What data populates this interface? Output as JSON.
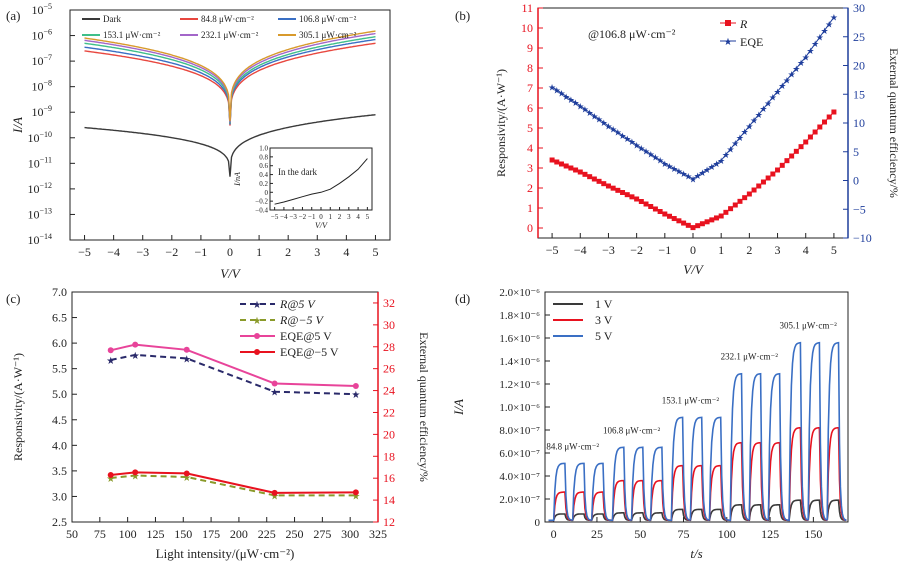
{
  "panel_labels": [
    "(a)",
    "(b)",
    "(c)",
    "(d)"
  ],
  "colors": {
    "dark": "#3a3a3a",
    "i84": "#e8473f",
    "i106": "#3a6fc4",
    "i153": "#3fbf8a",
    "i232": "#a366c9",
    "i305": "#d89a2c",
    "red": "#e8121f",
    "blue": "#1f3e9c",
    "pink": "#e8449a",
    "green": "#4aa84a",
    "navy": "#2a2a6a",
    "olive": "#8a9a2a"
  },
  "chart_data": [
    {
      "id": "a",
      "type": "line",
      "yscale": "log",
      "xlabel": "V/V",
      "ylabel": "I/A",
      "xlim": [
        -5.5,
        5.5
      ],
      "ylim": [
        1e-14,
        1e-05
      ],
      "x_ticks": [
        "-5",
        "-4",
        "-3",
        "-2",
        "-1",
        "0",
        "1",
        "2",
        "3",
        "4",
        "5"
      ],
      "y_ticks": [
        "10^-14",
        "10^-13",
        "10^-12",
        "10^-11",
        "10^-10",
        "10^-9",
        "10^-8",
        "10^-7",
        "10^-6",
        "10^-5"
      ],
      "series": [
        {
          "name": "Dark",
          "color_key": "dark",
          "at_neg5": 2.5e-10,
          "at_pos5": 8e-10,
          "min": 3e-12
        },
        {
          "name": "84.8 μW·cm⁻²",
          "color_key": "i84",
          "at_neg5": 2.5e-07,
          "at_pos5": 5e-07,
          "min": 3e-10
        },
        {
          "name": "106.8 μW·cm⁻²",
          "color_key": "i106",
          "at_neg5": 3.5e-07,
          "at_pos5": 7e-07,
          "min": 3.3e-10
        },
        {
          "name": "153.1 μW·cm⁻²",
          "color_key": "i153",
          "at_neg5": 5e-07,
          "at_pos5": 9e-07,
          "min": 3.6e-10
        },
        {
          "name": "232.1 μW·cm⁻²",
          "color_key": "i232",
          "at_neg5": 6.5e-07,
          "at_pos5": 1.2e-06,
          "min": 4e-10
        },
        {
          "name": "305.1 μW·cm⁻²",
          "color_key": "i305",
          "at_neg5": 8e-07,
          "at_pos5": 1.5e-06,
          "min": 4.5e-10
        }
      ],
      "inset": {
        "label": "In the dark",
        "xlabel": "V/V",
        "ylabel": "I/nA",
        "xlim": [
          -5.5,
          5.5
        ],
        "ylim": [
          -0.4,
          1.0
        ],
        "x_ticks": [
          "-5",
          "-4",
          "-3",
          "-2",
          "-1",
          "0",
          "1",
          "2",
          "3",
          "4",
          "5"
        ],
        "y_ticks": [
          "-0.4",
          "-0.2",
          "0",
          "0.2",
          "0.4",
          "0.6",
          "0.8",
          "1.0"
        ],
        "x": [
          -5,
          -4,
          -3,
          -2,
          -1,
          0,
          1,
          2,
          3,
          4,
          5
        ],
        "y": [
          -0.27,
          -0.22,
          -0.16,
          -0.1,
          -0.04,
          0,
          0.07,
          0.2,
          0.35,
          0.52,
          0.76
        ]
      }
    },
    {
      "id": "b",
      "type": "line",
      "annotation": "@106.8 μW·cm⁻²",
      "xlabel": "V/V",
      "ylabel_left": "Responsivity/(A·W⁻¹)",
      "ylabel_right": "External quantum efficiency/%",
      "xlim": [
        -5.5,
        5.5
      ],
      "ylim_left": [
        -0.5,
        11
      ],
      "ylim_right": [
        -10,
        30
      ],
      "x_ticks": [
        "-5",
        "-4",
        "-3",
        "-2",
        "-1",
        "0",
        "1",
        "2",
        "3",
        "4",
        "5"
      ],
      "y_ticks_left": [
        "0",
        "1",
        "2",
        "3",
        "4",
        "5",
        "6",
        "7",
        "8",
        "9",
        "10",
        "11"
      ],
      "y_ticks_right": [
        "-10",
        "-5",
        "0",
        "5",
        "10",
        "15",
        "20",
        "25",
        "30"
      ],
      "series": [
        {
          "name": "R",
          "color_key": "red",
          "marker": "square",
          "axis": "left",
          "x": [
            -5,
            -4,
            -3,
            -2,
            -1,
            0,
            1,
            2,
            3,
            4,
            5
          ],
          "y": [
            3.4,
            2.8,
            2.1,
            1.45,
            0.7,
            0.02,
            0.6,
            1.7,
            2.9,
            4.3,
            5.8
          ]
        },
        {
          "name": "EQE",
          "color_key": "blue",
          "marker": "star",
          "axis": "right",
          "x": [
            -5,
            -4,
            -3,
            -2,
            -1,
            0,
            1,
            2,
            3,
            4,
            5
          ],
          "y": [
            16.3,
            13.0,
            9.5,
            6.2,
            3.0,
            0.3,
            3.5,
            9.5,
            15.5,
            21.5,
            28.4
          ]
        }
      ]
    },
    {
      "id": "c",
      "type": "line",
      "xlabel": "Light intensity/(μW·cm⁻²)",
      "ylabel_left": "Responsivity/(A·W⁻¹)",
      "ylabel_right": "External quantum efficiency/%",
      "xlim": [
        50,
        325
      ],
      "ylim_left": [
        2.5,
        7.0
      ],
      "ylim_right": [
        12,
        33
      ],
      "x_ticks": [
        "50",
        "75",
        "100",
        "125",
        "150",
        "175",
        "200",
        "225",
        "250",
        "275",
        "300",
        "325"
      ],
      "y_ticks_left": [
        "2.5",
        "3.0",
        "3.5",
        "4.0",
        "4.5",
        "5.0",
        "5.5",
        "6.0",
        "6.5",
        "7.0"
      ],
      "y_ticks_right": [
        "12",
        "14",
        "16",
        "18",
        "20",
        "22",
        "24",
        "26",
        "28",
        "30",
        "32"
      ],
      "x": [
        84.8,
        106.8,
        153.1,
        232.1,
        305.1
      ],
      "series": [
        {
          "name": "R@5 V",
          "color_key": "navy",
          "dashed": true,
          "axis": "left",
          "y": [
            5.67,
            5.77,
            5.7,
            5.05,
            5.0
          ]
        },
        {
          "name": "R@-5 V",
          "color_key": "olive",
          "dashed": true,
          "axis": "left",
          "y": [
            3.36,
            3.41,
            3.38,
            3.02,
            3.02
          ]
        },
        {
          "name": "EQE@5 V",
          "color_key": "pink",
          "dashed": false,
          "axis": "left",
          "y": [
            5.86,
            5.97,
            5.87,
            5.21,
            5.16
          ]
        },
        {
          "name": "EQE@-5 V",
          "color_key": "red",
          "dashed": false,
          "axis": "left",
          "y": [
            3.42,
            3.47,
            3.45,
            3.07,
            3.08
          ]
        }
      ]
    },
    {
      "id": "d",
      "type": "line",
      "xlabel": "t/s",
      "ylabel": "I/A",
      "xlim": [
        -5,
        170
      ],
      "ylim": [
        0,
        2e-06
      ],
      "x_ticks": [
        "0",
        "25",
        "50",
        "75",
        "100",
        "125",
        "150"
      ],
      "y_ticks": [
        "0",
        "2.0×10⁻⁷",
        "4.0×10⁻⁷",
        "6.0×10⁻⁷",
        "8.0×10⁻⁷",
        "1.0×10⁻⁶",
        "1.2×10⁻⁶",
        "1.4×10⁻⁶",
        "1.6×10⁻⁶",
        "1.8×10⁻⁶",
        "2.0×10⁻⁶"
      ],
      "legend": [
        {
          "name": "1 V",
          "color_key": "dark"
        },
        {
          "name": "3 V",
          "color_key": "red"
        },
        {
          "name": "5 V",
          "color_key": "i106"
        }
      ],
      "groups": [
        {
          "label": "84.8 μW·cm⁻²",
          "t_start": 0,
          "amp_5V": 5.1e-07,
          "amp_3V": 2.6e-07,
          "amp_1V": 7e-08
        },
        {
          "label": "106.8 μW·cm⁻²",
          "t_start": 34,
          "amp_5V": 6.5e-07,
          "amp_3V": 3.6e-07,
          "amp_1V": 8e-08
        },
        {
          "label": "153.1 μW·cm⁻²",
          "t_start": 68,
          "amp_5V": 9.1e-07,
          "amp_3V": 4.9e-07,
          "amp_1V": 1.1e-07
        },
        {
          "label": "232.1 μW·cm⁻²",
          "t_start": 102,
          "amp_5V": 1.29e-06,
          "amp_3V": 6.9e-07,
          "amp_1V": 1.5e-07
        },
        {
          "label": "305.1 μW·cm⁻²",
          "t_start": 136,
          "amp_5V": 1.56e-06,
          "amp_3V": 8.2e-07,
          "amp_1V": 1.9e-07
        }
      ]
    }
  ]
}
